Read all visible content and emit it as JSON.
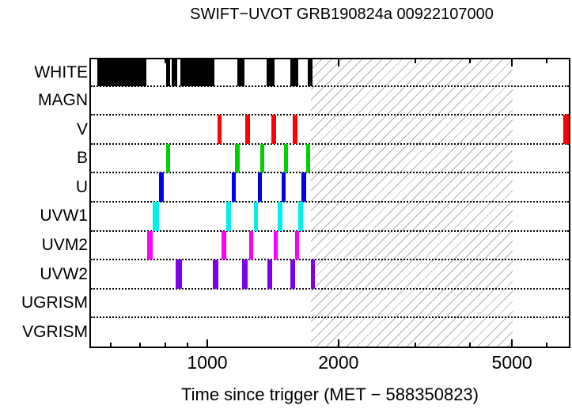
{
  "chart_data": {
    "type": "interval-timeline",
    "title": "SWIFT−UVOT GRB190824a 00922107000",
    "xlabel": "Time since trigger (MET − 588350823)",
    "x_scale": "log10",
    "x_domain": [
      540,
      6760
    ],
    "x_ticks_major": [
      {
        "value": 1000,
        "label": "1000"
      },
      {
        "value": 2000,
        "label": "2000"
      },
      {
        "value": 5000,
        "label": "5000"
      }
    ],
    "x_ticks_minor": [
      600,
      700,
      800,
      900,
      3000,
      4000,
      6000
    ],
    "hatch_region": {
      "start": 1730,
      "end": 5020
    },
    "grid": "dotted-row-separators",
    "rows": [
      {
        "label": "WHITE",
        "color": "#000000",
        "intervals": [
          [
            559,
            724
          ],
          [
            804,
            822
          ],
          [
            829,
            854
          ],
          [
            869,
            1040
          ],
          [
            1172,
            1217
          ],
          [
            1368,
            1427
          ],
          [
            1551,
            1617
          ],
          [
            1700,
            1740
          ]
        ]
      },
      {
        "label": "MAGN",
        "color": "#000000",
        "intervals": []
      },
      {
        "label": "V",
        "color": "#FF0000",
        "intervals": [
          [
            1056,
            1080
          ],
          [
            1222,
            1252
          ],
          [
            1405,
            1439
          ],
          [
            1571,
            1608
          ],
          [
            6555,
            6750
          ]
        ]
      },
      {
        "label": "B",
        "color": "#00D000",
        "intervals": [
          [
            805,
            823
          ],
          [
            1156,
            1185
          ],
          [
            1323,
            1353
          ],
          [
            1500,
            1534
          ],
          [
            1684,
            1720
          ]
        ]
      },
      {
        "label": "U",
        "color": "#0000EE",
        "intervals": [
          [
            774,
            796
          ],
          [
            1137,
            1164
          ],
          [
            1305,
            1334
          ],
          [
            1481,
            1514
          ],
          [
            1647,
            1684
          ]
        ]
      },
      {
        "label": "UVW1",
        "color": "#00EEEE",
        "intervals": [
          [
            750,
            775
          ],
          [
            1105,
            1132
          ],
          [
            1278,
            1307
          ],
          [
            1451,
            1486
          ],
          [
            1619,
            1656
          ]
        ]
      },
      {
        "label": "UVM2",
        "color": "#FF00FF",
        "intervals": [
          [
            728,
            750
          ],
          [
            1078,
            1105
          ],
          [
            1248,
            1275
          ],
          [
            1421,
            1451
          ],
          [
            1588,
            1622
          ]
        ]
      },
      {
        "label": "UVW2",
        "color": "#7D00E6",
        "intervals": [
          [
            845,
            875
          ],
          [
            1031,
            1060
          ],
          [
            1202,
            1236
          ],
          [
            1372,
            1411
          ],
          [
            1553,
            1588
          ],
          [
            1727,
            1763
          ]
        ]
      },
      {
        "label": "UGRISM",
        "color": "#000000",
        "intervals": []
      },
      {
        "label": "VGRISM",
        "color": "#000000",
        "intervals": []
      }
    ]
  }
}
